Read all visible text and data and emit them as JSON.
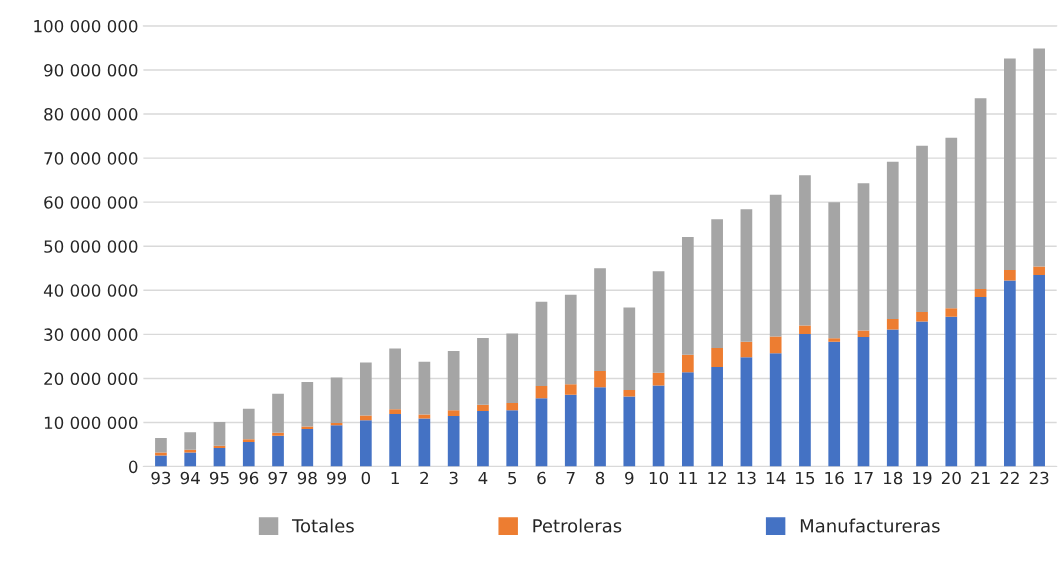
{
  "chart_data": {
    "type": "bar",
    "stacked": true,
    "categories": [
      "93",
      "94",
      "95",
      "96",
      "97",
      "98",
      "99",
      "0",
      "1",
      "2",
      "3",
      "4",
      "5",
      "6",
      "7",
      "8",
      "9",
      "10",
      "11",
      "12",
      "13",
      "14",
      "15",
      "16",
      "17",
      "18",
      "19",
      "20",
      "21",
      "22",
      "23"
    ],
    "series": [
      {
        "name": "Manufactureras",
        "color": "#4472c4",
        "values": [
          2500000,
          3200000,
          4200000,
          5600000,
          7000000,
          8500000,
          9400000,
          10500000,
          11900000,
          10900000,
          11500000,
          12600000,
          12800000,
          15500000,
          16300000,
          18000000,
          15900000,
          18400000,
          21400000,
          22600000,
          24800000,
          25700000,
          30100000,
          28300000,
          29400000,
          31100000,
          32900000,
          34000000,
          38500000,
          42200000,
          43500000
        ]
      },
      {
        "name": "Petroleras",
        "color": "#ed7d31",
        "values": [
          700000,
          600000,
          500000,
          600000,
          700000,
          600000,
          500000,
          1100000,
          1100000,
          900000,
          1300000,
          1400000,
          1600000,
          2800000,
          2400000,
          3700000,
          1500000,
          2900000,
          4000000,
          4300000,
          3500000,
          3800000,
          1900000,
          800000,
          1500000,
          2400000,
          2200000,
          1900000,
          1800000,
          2400000,
          1900000
        ]
      },
      {
        "name": "Totales",
        "color": "#a5a5a5",
        "values": [
          3300000,
          4000000,
          5400000,
          6900000,
          8800000,
          10100000,
          10300000,
          12000000,
          13800000,
          12000000,
          13400000,
          15200000,
          15800000,
          19100000,
          20300000,
          23300000,
          18700000,
          23000000,
          26700000,
          29200000,
          30100000,
          32200000,
          34100000,
          30900000,
          33400000,
          35700000,
          37700000,
          38700000,
          43300000,
          48000000,
          49500000
        ]
      }
    ],
    "ylim": [
      0,
      100000000
    ],
    "yticks": [
      0,
      {
        "value": 10000000,
        "label": "10 000 000"
      },
      {
        "value": 20000000,
        "label": "20 000 000"
      },
      {
        "value": 30000000,
        "label": "30 000 000"
      },
      {
        "value": 40000000,
        "label": "40 000 000"
      },
      {
        "value": 50000000,
        "label": "50 000 000"
      },
      {
        "value": 60000000,
        "label": "60 000 000"
      },
      {
        "value": 70000000,
        "label": "70 000 000"
      },
      {
        "value": 80000000,
        "label": "80 000 000"
      },
      {
        "value": 90000000,
        "label": "90 000 000"
      },
      {
        "value": 100000000,
        "label": "100 000 000"
      }
    ],
    "grid": "y",
    "legend": "bottom"
  }
}
